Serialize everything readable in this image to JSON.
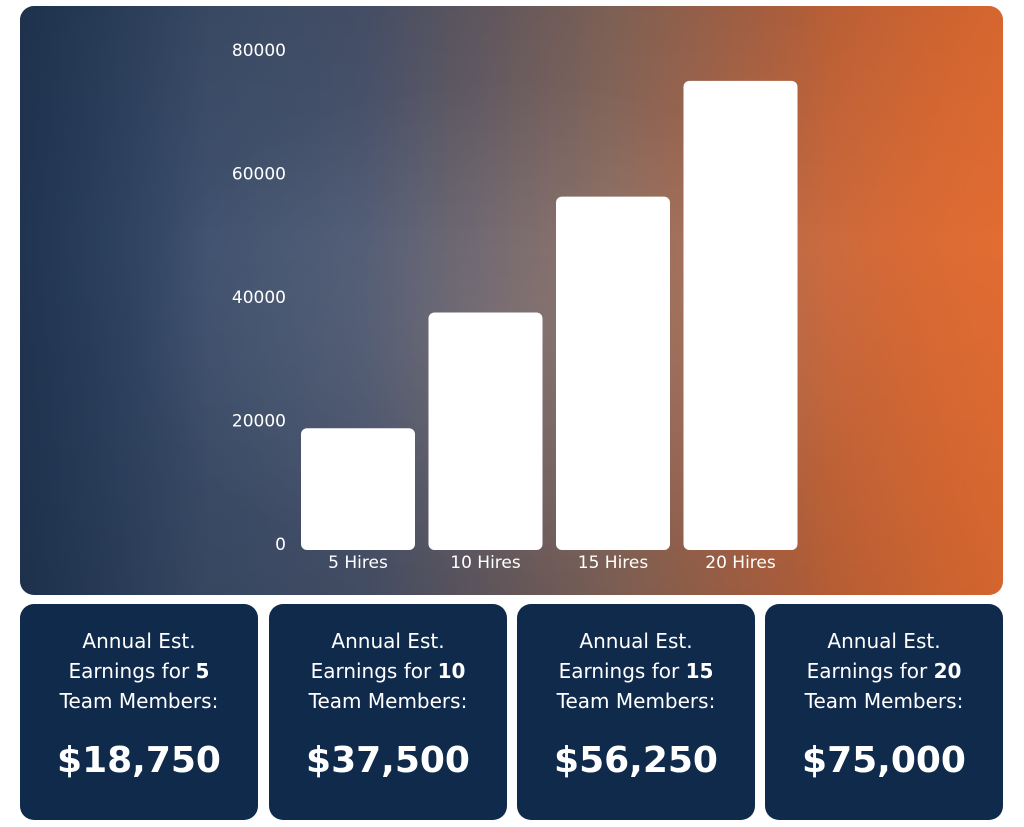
{
  "chart_data": {
    "type": "bar",
    "categories": [
      "5 Hires",
      "10 Hires",
      "15 Hires",
      "20 Hires"
    ],
    "values": [
      18750,
      37500,
      56250,
      75000
    ],
    "yticks": [
      "80000",
      "60000",
      "40000",
      "20000",
      "0"
    ],
    "ylim": [
      0,
      80000
    ],
    "grid": false,
    "bar_color": "#ffffff"
  },
  "cards": [
    {
      "line1": "Annual Est.",
      "line2_prefix": "Earnings for ",
      "count": "5",
      "line3": "Team Members:",
      "value": "$18,750"
    },
    {
      "line1": "Annual Est.",
      "line2_prefix": "Earnings for ",
      "count": "10",
      "line3": "Team Members:",
      "value": "$37,500"
    },
    {
      "line1": "Annual Est.",
      "line2_prefix": "Earnings for ",
      "count": "15",
      "line3": "Team Members:",
      "value": "$56,250"
    },
    {
      "line1": "Annual Est.",
      "line2_prefix": "Earnings for ",
      "count": "20",
      "line3": "Team Members:",
      "value": "$75,000"
    }
  ],
  "colors": {
    "card_bg": "#0f2a4b",
    "gradient_left": "#2f4a6b",
    "gradient_right": "#df6a31"
  }
}
